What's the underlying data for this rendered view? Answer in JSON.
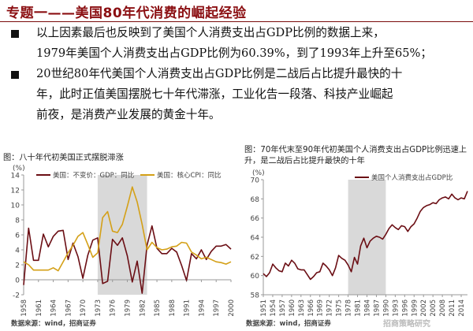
{
  "header": {
    "title": "专题一——美国80年代消费的崛起经验"
  },
  "bullets": [
    {
      "lines": [
        "以上因素最后也反映到了美国个人消费支出占GDP比例的数据上来，",
        "1979年美国个人消费支出占GDP比例为60.39%，到了1993年上升至65%；"
      ]
    },
    {
      "lines": [
        "20世纪80年代美国个人消费支出占GDP比例是二战后占比提升最快的十",
        "年，此时正值美国摆脱七十年代滞涨，工业化告一段落、科技产业崛起",
        "前夜，是消费产业发展的黄金十年。"
      ]
    }
  ],
  "left_chart": {
    "caption": "图：八十年代初美国正式摆脱滞涨",
    "source": "数据来源：wind，招商证券"
  },
  "right_chart": {
    "caption": "图：70年代末至90年代初美国个人消费支出占GDP比例迅速上升，是二战后占比提升最快的十年",
    "source": "数据来源：wind，招商证券"
  },
  "watermark": "招商策略研究",
  "chart_data": [
    {
      "type": "line",
      "title": "八十年代初美国正式摆脱滞涨",
      "ylabel": "(%)",
      "ylim": [
        -2,
        14
      ],
      "yticks": [
        -2,
        0,
        2,
        4,
        6,
        8,
        10,
        12,
        14
      ],
      "xlim": [
        1958,
        2000
      ],
      "xticks": [
        "1958",
        "1961",
        "1964",
        "1967",
        "1970",
        "1973",
        "1976",
        "1979",
        "1982",
        "1985",
        "1988",
        "1991",
        "1994",
        "1997",
        "2000"
      ],
      "shaded": [
        1973,
        1983
      ],
      "legend_position": "top",
      "grid": false,
      "series": [
        {
          "name": "美国：不变价：GDP：同比",
          "color": "#6b0e14",
          "x": [
            1958,
            1959,
            1960,
            1961,
            1962,
            1963,
            1964,
            1965,
            1966,
            1967,
            1968,
            1969,
            1970,
            1971,
            1972,
            1973,
            1974,
            1975,
            1976,
            1977,
            1978,
            1979,
            1980,
            1981,
            1982,
            1983,
            1984,
            1985,
            1986,
            1987,
            1988,
            1989,
            1990,
            1991,
            1992,
            1993,
            1994,
            1995,
            1996,
            1997,
            1998,
            1999,
            2000
          ],
          "values": [
            -0.7,
            6.9,
            2.6,
            2.6,
            6.1,
            4.4,
            5.8,
            6.5,
            6.6,
            2.7,
            4.9,
            3.1,
            0.2,
            3.3,
            5.3,
            5.6,
            -0.5,
            -0.2,
            5.4,
            4.6,
            5.6,
            3.2,
            -0.3,
            2.5,
            -1.8,
            4.6,
            7.2,
            4.2,
            3.5,
            3.5,
            4.2,
            3.7,
            1.9,
            -0.1,
            3.5,
            2.8,
            4.0,
            2.7,
            3.8,
            4.5,
            4.5,
            4.7,
            4.1
          ]
        },
        {
          "name": "美国：核心CPI：同比",
          "color": "#d4a017",
          "x": [
            1958,
            1959,
            1960,
            1961,
            1962,
            1963,
            1964,
            1965,
            1966,
            1967,
            1968,
            1969,
            1970,
            1971,
            1972,
            1973,
            1974,
            1975,
            1976,
            1977,
            1978,
            1979,
            1980,
            1981,
            1982,
            1983,
            1984,
            1985,
            1986,
            1987,
            1988,
            1989,
            1990,
            1991,
            1992,
            1993,
            1994,
            1995,
            1996,
            1997,
            1998,
            1999,
            2000
          ],
          "values": [
            2.4,
            2.0,
            1.3,
            1.3,
            1.3,
            1.3,
            1.6,
            1.2,
            2.4,
            3.6,
            4.6,
            5.8,
            6.3,
            4.7,
            3.0,
            3.6,
            8.3,
            9.1,
            6.5,
            6.3,
            7.4,
            9.8,
            12.4,
            10.4,
            7.4,
            4.0,
            5.0,
            4.3,
            4.0,
            4.1,
            4.4,
            4.5,
            5.0,
            4.9,
            3.7,
            3.3,
            2.8,
            3.0,
            2.7,
            2.4,
            2.3,
            2.1,
            2.4
          ]
        }
      ]
    },
    {
      "type": "line",
      "title": "70年代末至90年代初美国个人消费支出占GDP比例迅速上升，是二战后占比提升最快的十年",
      "ylabel": "(%)",
      "ylim": [
        58,
        70
      ],
      "yticks": [
        58,
        60,
        62,
        64,
        66,
        68,
        70
      ],
      "xlim": [
        1951,
        2016
      ],
      "xticks": [
        "1951",
        "1954",
        "1957",
        "1960",
        "1963",
        "1966",
        "1969",
        "1972",
        "1975",
        "1978",
        "1981",
        "1984",
        "1987",
        "1990",
        "1993",
        "1996",
        "1999",
        "2002",
        "2005",
        "2008",
        "2011",
        "2014"
      ],
      "shaded": [
        1978,
        1990
      ],
      "legend_position": "top-right",
      "grid": false,
      "series": [
        {
          "name": "美国个人消费支出占GDP比",
          "color": "#6b0e14",
          "x": [
            1951,
            1952,
            1953,
            1954,
            1955,
            1956,
            1957,
            1958,
            1959,
            1960,
            1961,
            1962,
            1963,
            1964,
            1965,
            1966,
            1967,
            1968,
            1969,
            1970,
            1971,
            1972,
            1973,
            1974,
            1975,
            1976,
            1977,
            1978,
            1979,
            1980,
            1981,
            1982,
            1983,
            1984,
            1985,
            1986,
            1987,
            1988,
            1989,
            1990,
            1991,
            1992,
            1993,
            1994,
            1995,
            1996,
            1997,
            1998,
            1999,
            2000,
            2001,
            2002,
            2003,
            2004,
            2005,
            2006,
            2007,
            2008,
            2009,
            2010,
            2011,
            2012,
            2013,
            2014,
            2015,
            2016
          ],
          "values": [
            60.2,
            59.9,
            60.3,
            61.2,
            60.8,
            60.5,
            60.4,
            61.3,
            61.0,
            61.6,
            61.3,
            60.7,
            60.6,
            60.6,
            60.1,
            59.6,
            59.9,
            60.3,
            60.4,
            61.3,
            61.0,
            60.6,
            60.0,
            60.8,
            62.1,
            61.8,
            61.6,
            61.1,
            60.4,
            61.9,
            61.2,
            63.1,
            63.9,
            62.9,
            63.6,
            63.9,
            64.1,
            64.0,
            63.8,
            64.3,
            64.9,
            65.3,
            65.0,
            64.8,
            65.2,
            65.1,
            64.6,
            65.1,
            65.4,
            66.0,
            66.7,
            67.1,
            67.3,
            67.4,
            67.6,
            67.5,
            67.9,
            68.1,
            68.2,
            68.0,
            68.5,
            68.1,
            67.9,
            68.1,
            68.0,
            68.8
          ]
        }
      ]
    }
  ]
}
